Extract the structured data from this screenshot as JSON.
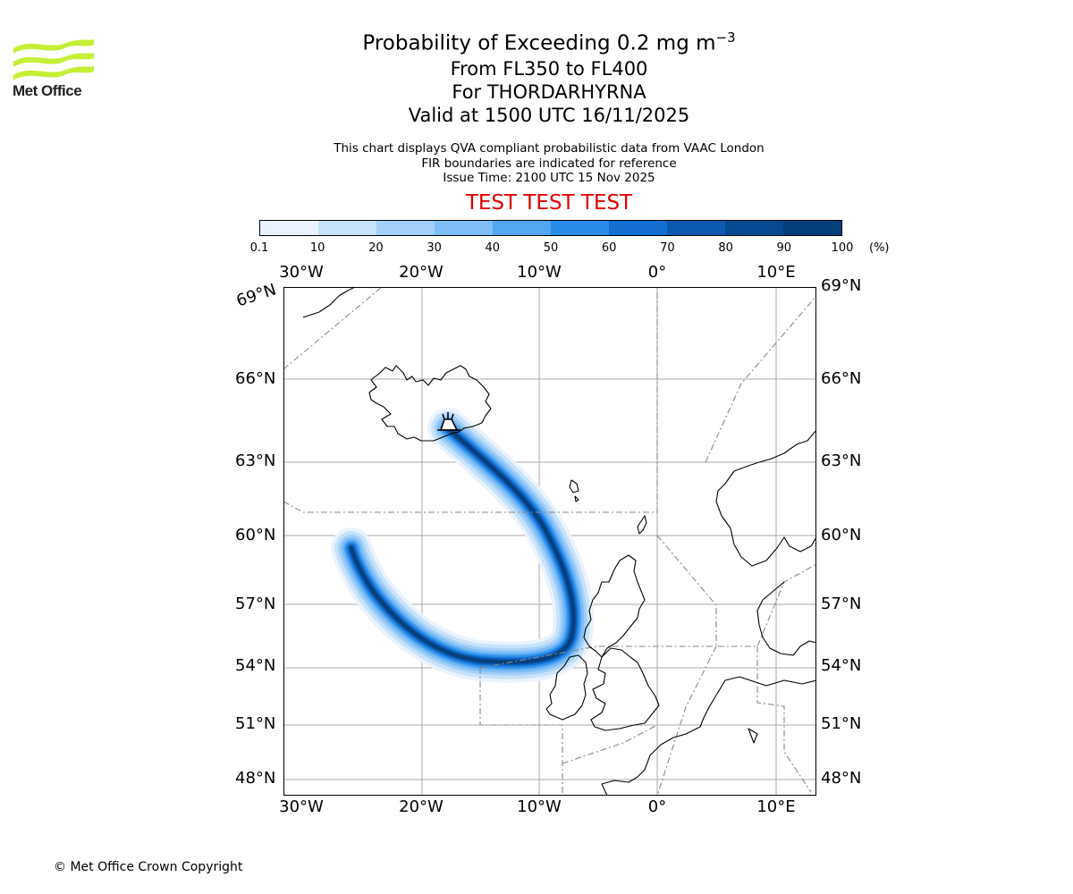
{
  "header": {
    "logo_text": "Met Office",
    "title": "Probability of Exceeding 0.2 mg m",
    "title_superscript": "−3",
    "subtitle_lines": [
      "From FL350 to FL400",
      "For THORDARHYRNA",
      "Valid at 1500 UTC 16/11/2025"
    ],
    "note_lines": [
      "This chart displays QVA compliant probabilistic data from VAAC London",
      "FIR boundaries are indicated for reference",
      "Issue Time: 2100 UTC 15 Nov 2025"
    ],
    "test_banner": "TEST TEST TEST"
  },
  "colorbar": {
    "ticks": [
      "0.1",
      "10",
      "20",
      "30",
      "40",
      "50",
      "60",
      "70",
      "80",
      "90",
      "100"
    ],
    "unit": "(%)",
    "colors": [
      "#eaf3fd",
      "#c7e2fa",
      "#a3d0f8",
      "#7ebdf6",
      "#53a6f2",
      "#2a8ce9",
      "#136fd1",
      "#0b59b0",
      "#084a92",
      "#063f7a"
    ]
  },
  "map": {
    "lon_labels_top": [
      "30°W",
      "20°W",
      "10°W",
      "0°",
      "10°E"
    ],
    "lon_labels_bottom": [
      "30°W",
      "20°W",
      "10°W",
      "0°",
      "10°E"
    ],
    "lat_labels_left": [
      "69°N",
      "66°N",
      "63°N",
      "60°N",
      "57°N",
      "54°N",
      "51°N",
      "48°N"
    ],
    "lat_labels_right": [
      "69°N",
      "66°N",
      "63°N",
      "60°N",
      "57°N",
      "54°N",
      "51°N",
      "48°N"
    ],
    "volcano_icon": "volcano-icon",
    "coastline_color": "#000000",
    "fir_boundary_color": "#888888",
    "grid_color": "#aaaaaa"
  },
  "footer": {
    "copyright": "© Met Office Crown Copyright"
  }
}
